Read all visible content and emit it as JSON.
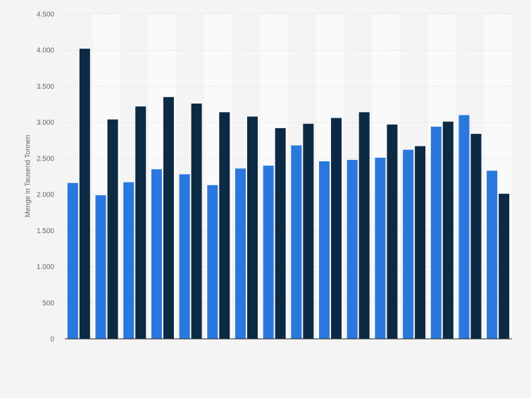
{
  "chart_data": {
    "type": "bar",
    "title": "",
    "xlabel": "",
    "ylabel": "Menge in Tausend Tonnen",
    "ylim": [
      0,
      4500
    ],
    "yticks": [
      0,
      500,
      1000,
      1500,
      2000,
      2500,
      3000,
      3500,
      4000,
      4500
    ],
    "ytick_labels": [
      "0",
      "500",
      "1.000",
      "1.500",
      "2.000",
      "2.500",
      "3.000",
      "3.500",
      "4.000",
      "4.500"
    ],
    "grid": true,
    "categories": [
      "",
      "",
      "",
      "",
      "",
      "",
      "",
      "",
      "",
      "",
      "",
      "",
      "",
      "",
      "",
      ""
    ],
    "series": [
      {
        "color": "#2a78de",
        "values": [
          2160,
          1990,
          2170,
          2350,
          2280,
          2130,
          2360,
          2400,
          2680,
          2460,
          2480,
          2510,
          2620,
          2940,
          3100,
          2330
        ]
      },
      {
        "color": "#0d2a44",
        "values": [
          4020,
          3040,
          3220,
          3350,
          3260,
          3140,
          3080,
          2920,
          2980,
          3060,
          3140,
          2970,
          2670,
          3010,
          2840,
          2010
        ]
      }
    ]
  }
}
